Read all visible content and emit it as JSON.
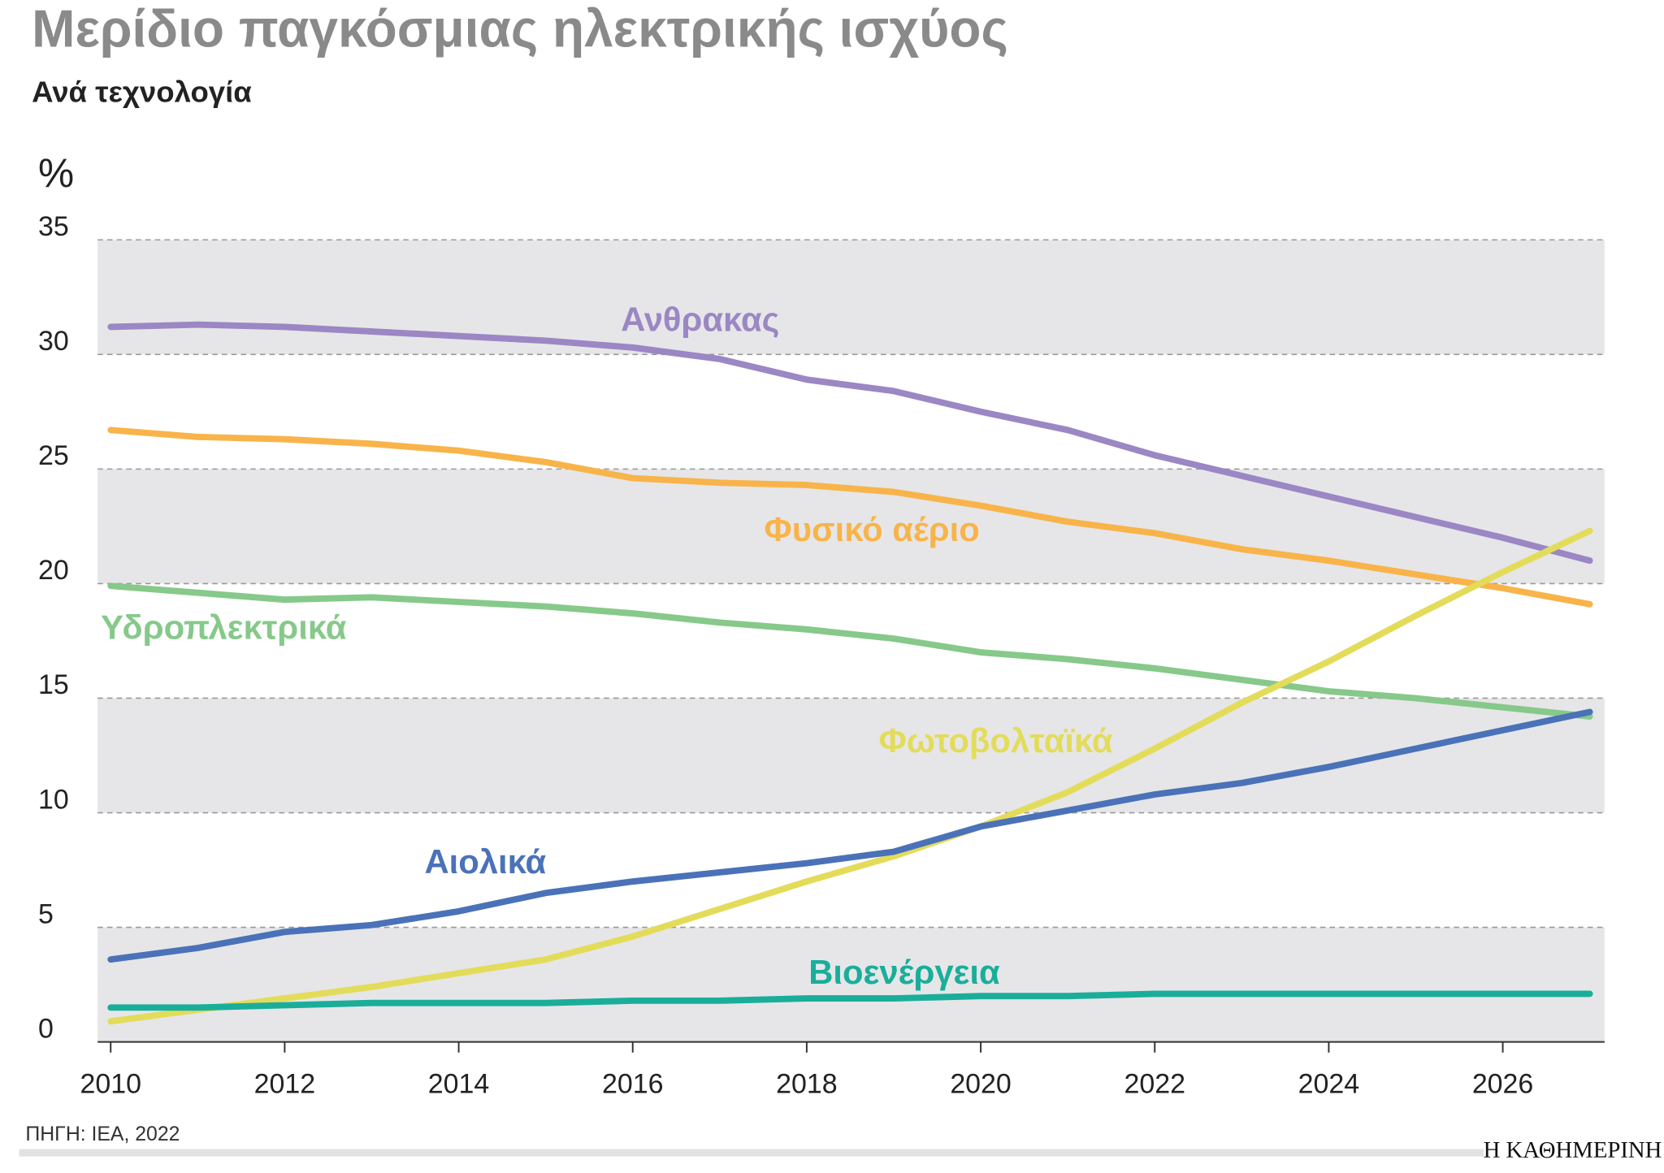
{
  "chart_data": {
    "type": "line",
    "title": "Μερίδιο παγκόσμιας ηλεκτρικής ισχύος",
    "subtitle": "Ανά τεχνολογία",
    "y_unit": "%",
    "source": "ΠΗΓΗ: IEA, 2022",
    "brand": "Η ΚΑΘΗΜΕΡΙΝΗ",
    "x": [
      2010,
      2011,
      2012,
      2013,
      2014,
      2015,
      2016,
      2017,
      2018,
      2019,
      2020,
      2021,
      2022,
      2023,
      2024,
      2025,
      2026,
      2027
    ],
    "xlim": [
      2009.85,
      2027.17
    ],
    "xticks": [
      2010,
      2012,
      2014,
      2016,
      2018,
      2020,
      2022,
      2024,
      2026
    ],
    "ylim": [
      0,
      35
    ],
    "yticks": [
      0,
      5,
      10,
      15,
      20,
      25,
      30,
      35
    ],
    "grid": true,
    "series": [
      {
        "name": "Ανθρακας",
        "color": "#9b87c4",
        "values": [
          31.2,
          31.3,
          31.2,
          31.0,
          30.8,
          30.6,
          30.3,
          29.8,
          28.9,
          28.4,
          27.5,
          26.7,
          25.6,
          24.7,
          23.8,
          22.9,
          22.0,
          21.0
        ]
      },
      {
        "name": "Φυσικό αέριο",
        "color": "#f8b44a",
        "values": [
          26.7,
          26.4,
          26.3,
          26.1,
          25.8,
          25.3,
          24.6,
          24.4,
          24.3,
          24.0,
          23.4,
          22.7,
          22.2,
          21.5,
          21.0,
          20.4,
          19.8,
          19.1
        ]
      },
      {
        "name": "Υδροπλεκτρικά",
        "color": "#86c98a",
        "values": [
          19.9,
          19.6,
          19.3,
          19.4,
          19.2,
          19.0,
          18.7,
          18.3,
          18.0,
          17.6,
          17.0,
          16.7,
          16.3,
          15.8,
          15.3,
          15.0,
          14.6,
          14.2
        ]
      },
      {
        "name": "Φωτοβολταϊκά",
        "color": "#e3dc5a",
        "values": [
          0.9,
          1.4,
          1.9,
          2.4,
          3.0,
          3.6,
          4.6,
          5.8,
          7.0,
          8.1,
          9.4,
          10.9,
          12.8,
          14.8,
          16.6,
          18.6,
          20.5,
          22.3
        ]
      },
      {
        "name": "Αιολικά",
        "color": "#4a72b8",
        "values": [
          3.6,
          4.1,
          4.8,
          5.1,
          5.7,
          6.5,
          7.0,
          7.4,
          7.8,
          8.3,
          9.4,
          10.1,
          10.8,
          11.3,
          12.0,
          12.8,
          13.6,
          14.4
        ]
      },
      {
        "name": "Βιοενέργεια",
        "color": "#1aae9a",
        "values": [
          1.5,
          1.5,
          1.6,
          1.7,
          1.7,
          1.7,
          1.8,
          1.8,
          1.9,
          1.9,
          2.0,
          2.0,
          2.1,
          2.1,
          2.1,
          2.1,
          2.1,
          2.1
        ]
      }
    ]
  }
}
